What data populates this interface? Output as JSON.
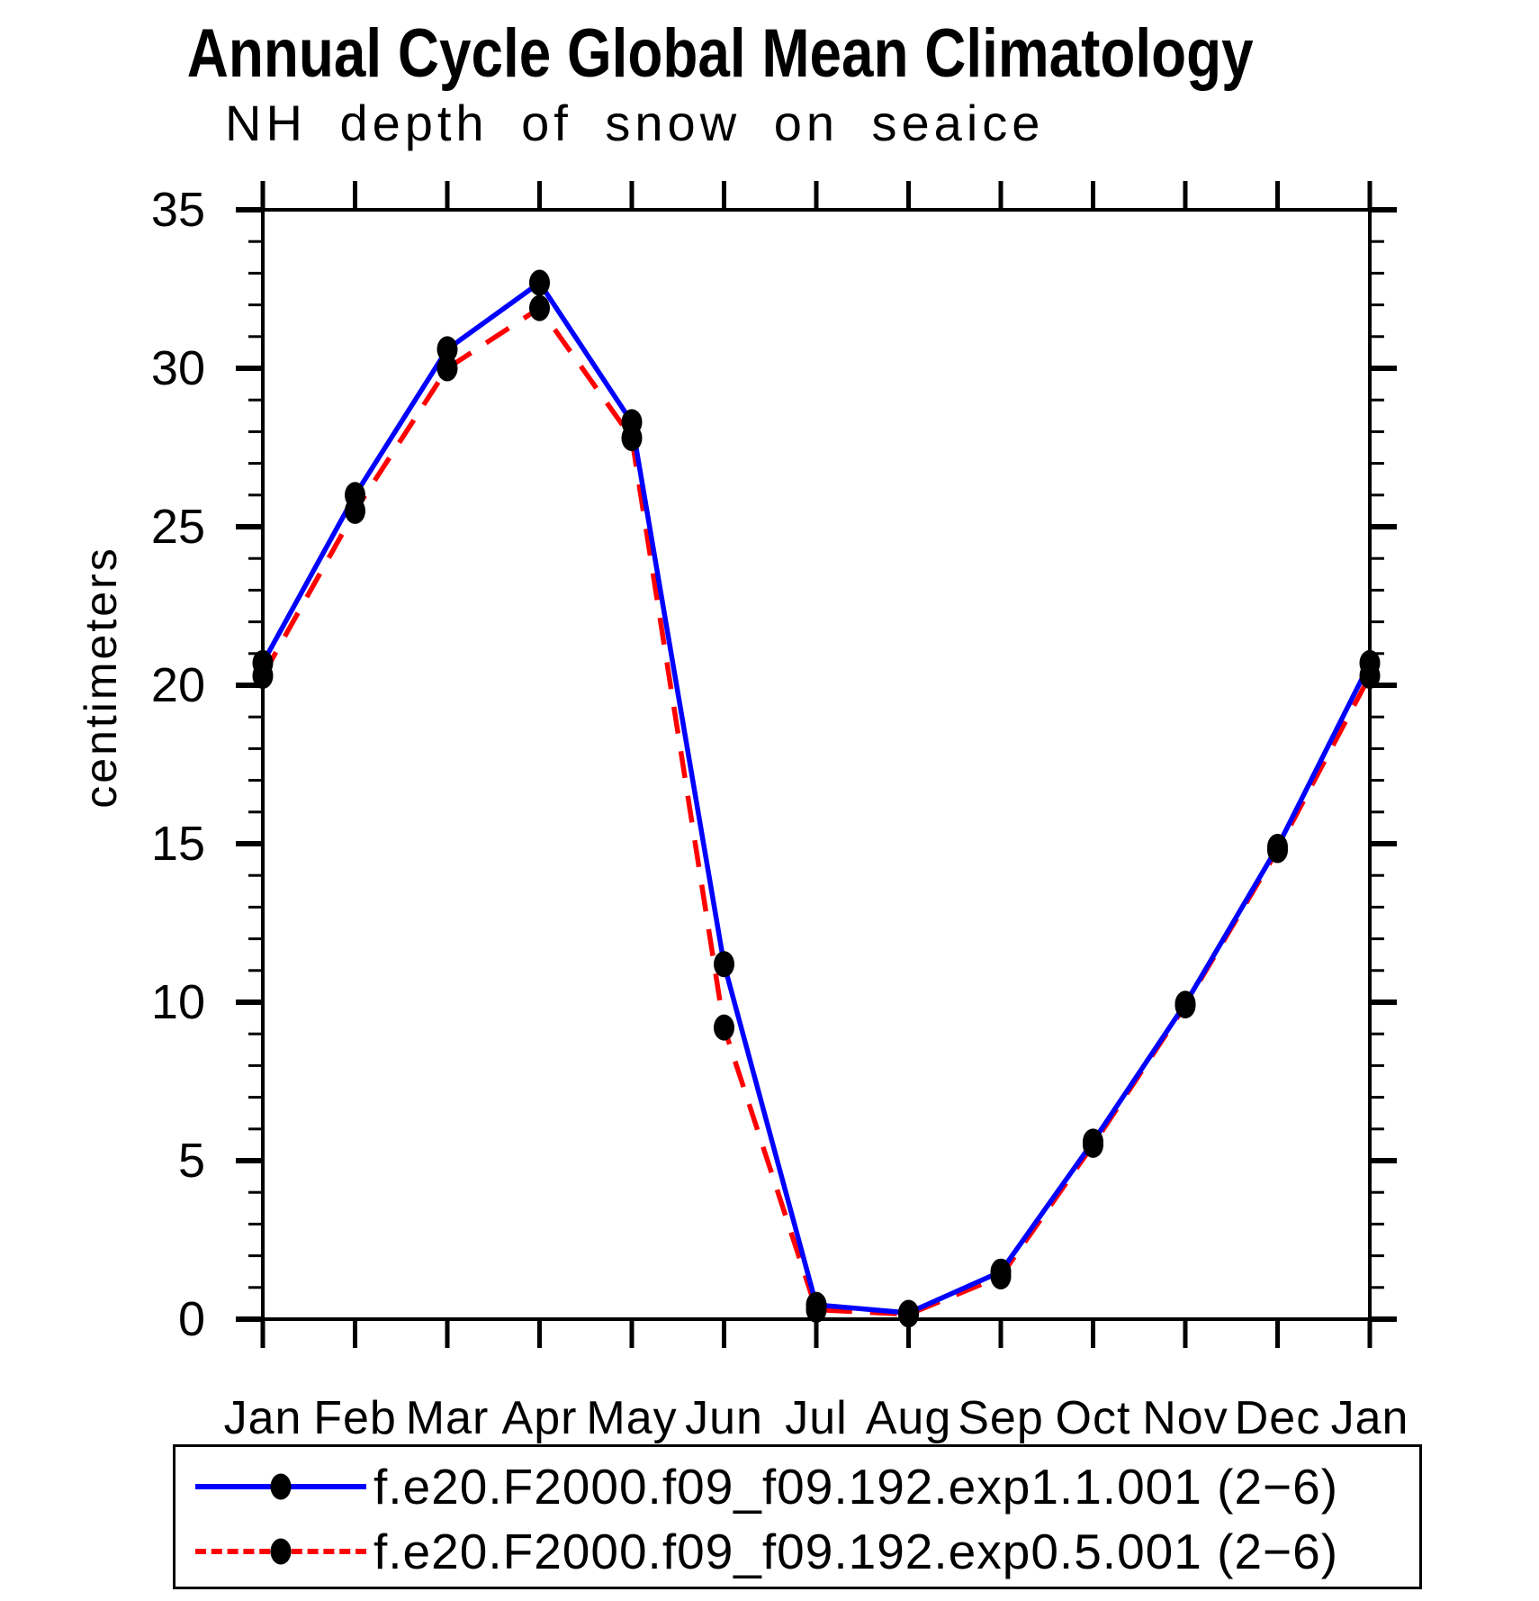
{
  "chart_data": {
    "type": "line",
    "title": "Annual Cycle Global Mean Climatology",
    "subtitle": "NH depth of snow on seaice",
    "ylabel": "centimeters",
    "xlabel": "",
    "categories": [
      "Jan",
      "Feb",
      "Mar",
      "Apr",
      "May",
      "Jun",
      "Jul",
      "Aug",
      "Sep",
      "Oct",
      "Nov",
      "Dec",
      "Jan"
    ],
    "ylim": [
      0,
      35
    ],
    "y_major_ticks": [
      0,
      5,
      10,
      15,
      20,
      25,
      30,
      35
    ],
    "y_minor_tick_step": 1,
    "grid": false,
    "legend_position": "bottom",
    "frame_color": "#000000",
    "marker_color": "#000000",
    "series": [
      {
        "name": "f.e20.F2000.f09_f09.192.exp1.1.001 (2−6)",
        "color": "#0000ff",
        "style": "solid",
        "marker": "black-dot",
        "values": [
          20.7,
          26.0,
          30.6,
          32.7,
          28.3,
          11.2,
          0.45,
          0.2,
          1.5,
          5.6,
          9.95,
          14.9,
          20.7
        ]
      },
      {
        "name": "f.e20.F2000.f09_f09.192.exp0.5.001 (2−6)",
        "color": "#ff0000",
        "style": "dashed",
        "marker": "black-dot",
        "values": [
          20.3,
          25.5,
          30.0,
          31.9,
          27.8,
          9.2,
          0.3,
          0.15,
          1.35,
          5.5,
          9.9,
          14.8,
          20.3
        ]
      }
    ]
  }
}
